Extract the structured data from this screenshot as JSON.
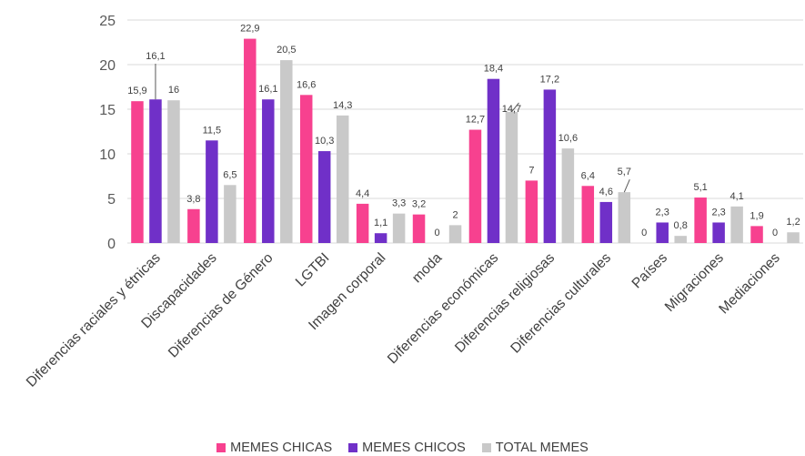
{
  "chart_data": {
    "type": "bar",
    "categories": [
      "Diferencias raciales y étnicas",
      "Discapacidades",
      "Diferencias de Género",
      "LGTBI",
      "Imagen corporal",
      "moda",
      "Diferencias económicas",
      "Diferencias religiosas",
      "Diferencias culturales",
      "Países",
      "Migraciones",
      "Mediaciones"
    ],
    "series": [
      {
        "name": "MEMES CHICAS",
        "color": "#F7418F",
        "values": [
          15.9,
          3.8,
          22.9,
          16.6,
          4.4,
          3.2,
          12.7,
          7,
          6.4,
          0,
          5.1,
          1.9
        ],
        "labels": [
          "15,9",
          "3,8",
          "22,9",
          "16,6",
          "4,4",
          "3,2",
          "12,7",
          "7",
          "6,4",
          "0",
          "5,1",
          "1,9"
        ]
      },
      {
        "name": "MEMES CHICOS",
        "color": "#7030C8",
        "values": [
          16.1,
          11.5,
          16.1,
          10.3,
          1.1,
          0,
          18.4,
          17.2,
          4.6,
          2.3,
          2.3,
          0
        ],
        "labels": [
          "16,1",
          "11,5",
          "16,1",
          "10,3",
          "1,1",
          "0",
          "18,4",
          "17,2",
          "4,6",
          "2,3",
          "2,3",
          "0"
        ]
      },
      {
        "name": "TOTAL MEMES",
        "color": "#C9C9C9",
        "values": [
          16,
          6.5,
          20.5,
          14.3,
          3.3,
          2,
          14.7,
          10.6,
          5.7,
          0.8,
          4.1,
          1.2
        ],
        "labels": [
          "16",
          "6,5",
          "20,5",
          "14,3",
          "3,3",
          "2",
          "14,7",
          "10,6",
          "5,7",
          "0,8",
          "4,1",
          "1,2"
        ]
      }
    ],
    "yticks": [
      "0",
      "5",
      "10",
      "15",
      "20",
      "25"
    ],
    "ylim": [
      0,
      25
    ],
    "grid": true,
    "legend_position": "bottom"
  }
}
